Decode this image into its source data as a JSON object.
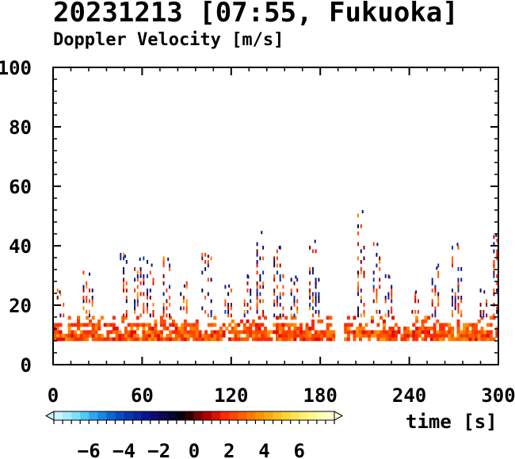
{
  "title": "20231213 [07:55, Fukuoka]",
  "subtitle": "Doppler Velocity [m/s]",
  "chart_data": {
    "type": "heatmap",
    "title": "20231213 [07:55, Fukuoka]",
    "subtitle": "Doppler Velocity [m/s]",
    "xlabel": "time [s]",
    "ylabel": "",
    "xlim": [
      0,
      300
    ],
    "ylim": [
      0,
      100
    ],
    "x_ticks": [
      "0",
      "60",
      "120",
      "180",
      "240",
      "300"
    ],
    "y_ticks": [
      "0",
      "20",
      "40",
      "60",
      "80",
      "100"
    ],
    "colorbar": {
      "range": [
        -8,
        8
      ],
      "ticks": [
        "-6",
        "-4",
        "-2",
        "0",
        "2",
        "4",
        "6"
      ],
      "colors": [
        "#c8f5ff",
        "#a8ecff",
        "#80e0ff",
        "#50c8f8",
        "#2aa8f0",
        "#1888e0",
        "#0c68d0",
        "#0a4cc0",
        "#0838b0",
        "#0a26a0",
        "#0a168c",
        "#0c0c70",
        "#0a0850",
        "#0a0430",
        "#0a0010",
        "#300000",
        "#7a0000",
        "#b00000",
        "#e01000",
        "#ff2a00",
        "#ff4400",
        "#ff6000",
        "#ff7a00",
        "#ff9400",
        "#ffaa10",
        "#ffc020",
        "#ffd438",
        "#ffe455",
        "#fff070",
        "#fff890",
        "#ffffb0",
        "#ffffd0"
      ]
    },
    "grid": false,
    "legend": "bottom-left colorbar",
    "clusters": [
      {
        "t": 4,
        "top": 25,
        "w": 7
      },
      {
        "t": 24,
        "top": 31,
        "w": 8
      },
      {
        "t": 48,
        "top": 37,
        "w": 6
      },
      {
        "t": 58,
        "top": 36,
        "w": 7
      },
      {
        "t": 66,
        "top": 34,
        "w": 6
      },
      {
        "t": 77,
        "top": 36,
        "w": 6
      },
      {
        "t": 88,
        "top": 27,
        "w": 5
      },
      {
        "t": 104,
        "top": 37,
        "w": 8
      },
      {
        "t": 118,
        "top": 27,
        "w": 5
      },
      {
        "t": 131,
        "top": 30,
        "w": 5
      },
      {
        "t": 140,
        "top": 45,
        "w": 6
      },
      {
        "t": 152,
        "top": 40,
        "w": 7
      },
      {
        "t": 163,
        "top": 30,
        "w": 6
      },
      {
        "t": 176,
        "top": 42,
        "w": 7
      },
      {
        "t": 208,
        "top": 52,
        "w": 6
      },
      {
        "t": 218,
        "top": 41,
        "w": 5
      },
      {
        "t": 226,
        "top": 30,
        "w": 5
      },
      {
        "t": 244,
        "top": 25,
        "w": 5
      },
      {
        "t": 258,
        "top": 33,
        "w": 6
      },
      {
        "t": 272,
        "top": 41,
        "w": 7
      },
      {
        "t": 290,
        "top": 25,
        "w": 5
      },
      {
        "t": 298,
        "top": 44,
        "w": 3
      }
    ],
    "base_layer": {
      "bottom": 8,
      "top": 16
    },
    "gaps": [
      [
        189,
        194
      ]
    ]
  }
}
